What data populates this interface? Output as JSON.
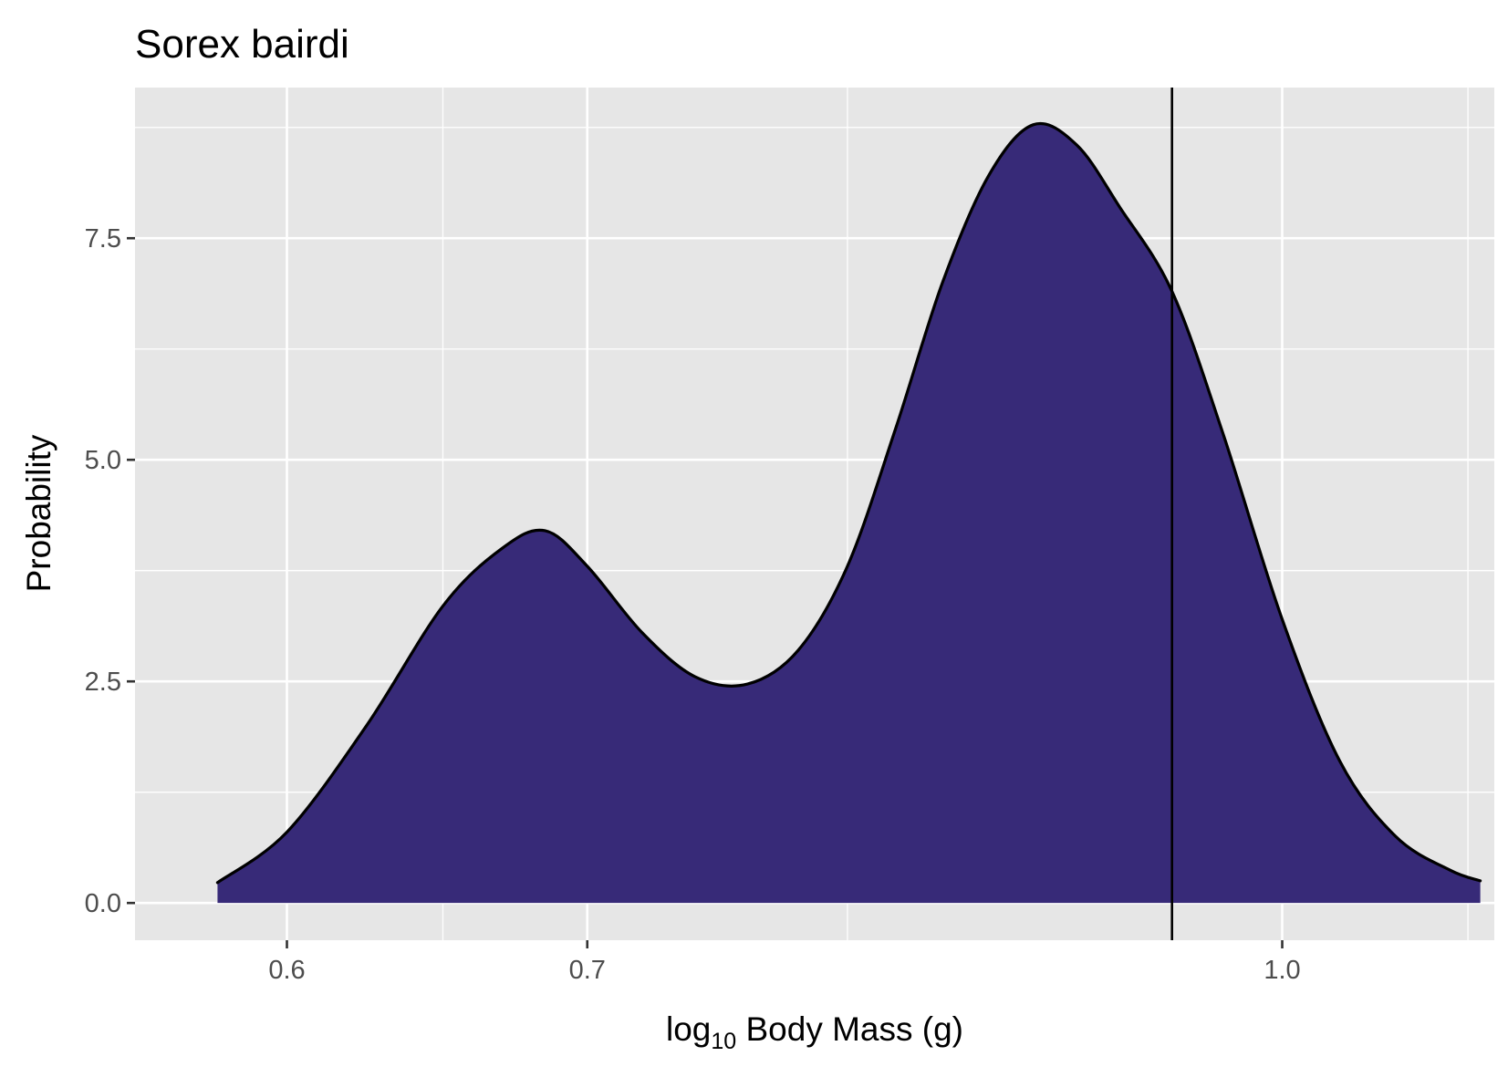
{
  "chart_data": {
    "type": "area",
    "title": "Sorex bairdi",
    "xlabel": {
      "prefix": "log",
      "subscript": "10",
      "suffix": " Body Mass (g)"
    },
    "ylabel": "Probability",
    "x_scale": "log10",
    "x_ticks": [
      {
        "label": "0.6",
        "value": 0.6
      },
      {
        "label": "0.7",
        "value": 0.7
      },
      {
        "label": "1.0",
        "value": 1.0
      }
    ],
    "x_minor_ticks": [
      0.55,
      0.65,
      0.8,
      1.1
    ],
    "y_ticks": [
      {
        "label": "0.0",
        "value": 0.0
      },
      {
        "label": "2.5",
        "value": 2.5
      },
      {
        "label": "5.0",
        "value": 5.0
      },
      {
        "label": "7.5",
        "value": 7.5
      }
    ],
    "y_minor_ticks": [
      1.25,
      3.75,
      6.25,
      8.75
    ],
    "xlim": [
      0.555,
      1.115
    ],
    "ylim": [
      -0.42,
      9.2
    ],
    "grid": true,
    "fill_color": "#372a78",
    "line_color": "#000000",
    "panel_color": "#e6e6e6",
    "vline_x": 0.945,
    "density": {
      "x": [
        0.579,
        0.6,
        0.625,
        0.65,
        0.67,
        0.685,
        0.7,
        0.72,
        0.74,
        0.76,
        0.78,
        0.8,
        0.82,
        0.84,
        0.86,
        0.88,
        0.9,
        0.92,
        0.945,
        0.97,
        1.0,
        1.03,
        1.06,
        1.09,
        1.107
      ],
      "y": [
        0.23,
        0.8,
        2.0,
        3.35,
        4.0,
        4.2,
        3.8,
        3.05,
        2.55,
        2.47,
        2.85,
        3.8,
        5.35,
        7.0,
        8.2,
        8.78,
        8.55,
        7.85,
        6.9,
        5.3,
        3.2,
        1.6,
        0.75,
        0.37,
        0.25
      ]
    }
  }
}
